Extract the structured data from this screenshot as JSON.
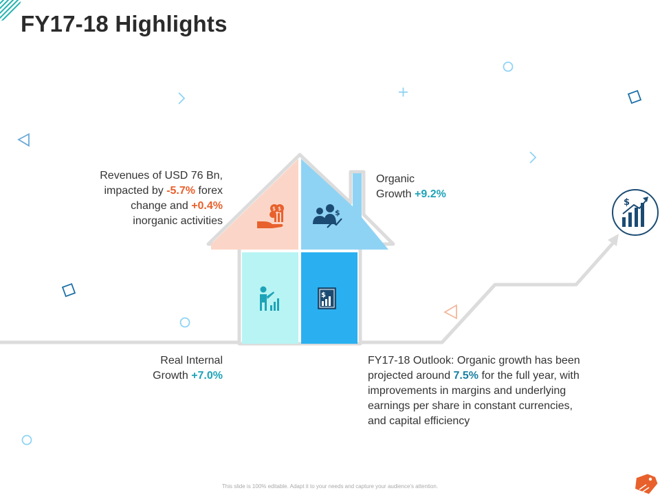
{
  "title": "FY17-18 Highlights",
  "revenues": {
    "pre": "Revenues of USD 76 Bn,",
    "l2_pre": "impacted by ",
    "forex": "-5.7%",
    "l2_post": " forex",
    "l3_pre": "change and ",
    "inorganic": "+0.4%",
    "l4": "inorganic activities"
  },
  "organic": {
    "line1": "Organic",
    "line2_pre": "Growth ",
    "value": "+9.2%"
  },
  "real_internal": {
    "line1": "Real Internal",
    "line2_pre": "Growth ",
    "value": "+7.0%"
  },
  "outlook": {
    "l1": "FY17-18 Outlook: Organic growth has been",
    "l2_pre": "projected around ",
    "value": "7.5%",
    "l2_post": " for the full year, with",
    "l3": "improvements in margins and underlying",
    "l4": "earnings per share in constant currencies,",
    "l5": "and capital efficiency"
  },
  "footer": "This slide is 100% editable. Adapt it to your needs and capture your audience's attention.",
  "colors": {
    "quad_top_left": "#fbd6c8",
    "quad_top_right": "#8fd3f4",
    "quad_bottom_left": "#b8f4f4",
    "quad_bottom_right": "#2ab0f0",
    "accent_orange": "#e8612c",
    "accent_teal": "#1ea3b8",
    "icon_navy": "#1b4b72"
  },
  "icons": [
    "money-hand-icon",
    "people-growth-icon",
    "presenter-chart-icon",
    "dollar-chart-icon",
    "growth-chart-circle-icon",
    "tag-icon"
  ]
}
